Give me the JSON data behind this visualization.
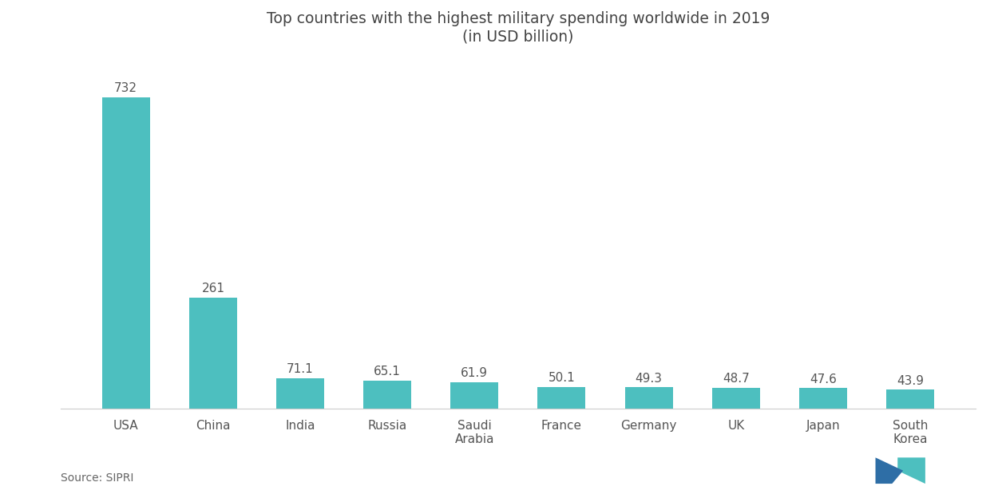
{
  "title": "Top countries with the highest military spending worldwide in 2019\n(in USD billion)",
  "categories": [
    "USA",
    "China",
    "India",
    "Russia",
    "Saudi\nArabia",
    "France",
    "Germany",
    "UK",
    "Japan",
    "South\nKorea"
  ],
  "values": [
    732,
    261,
    71.1,
    65.1,
    61.9,
    50.1,
    49.3,
    48.7,
    47.6,
    43.9
  ],
  "bar_color": "#4DBFBF",
  "background_color": "#ffffff",
  "source_text": "Source: SIPRI",
  "title_fontsize": 13.5,
  "label_fontsize": 11,
  "value_fontsize": 11,
  "source_fontsize": 10,
  "ylim": [
    0,
    820
  ]
}
